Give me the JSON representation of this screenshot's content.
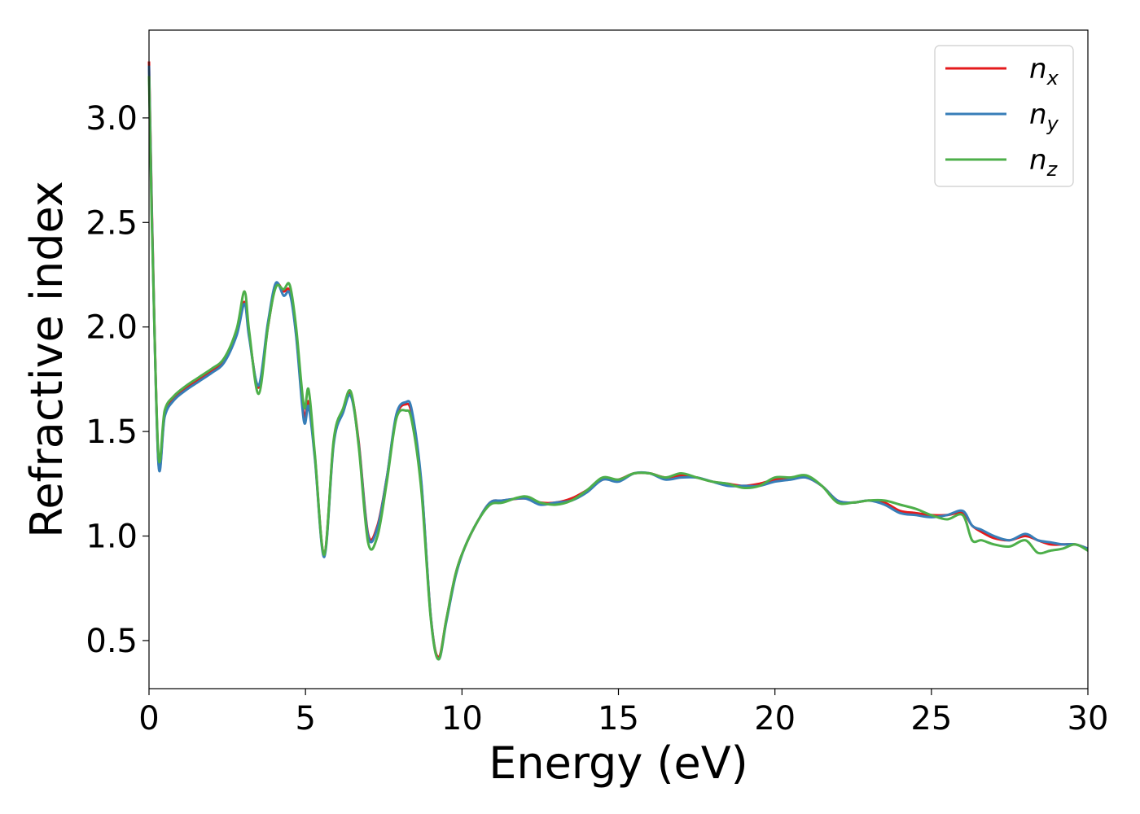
{
  "chart_data": {
    "type": "line",
    "xlabel": "Energy (eV)",
    "ylabel": "Refractive index",
    "xlim": [
      0,
      30
    ],
    "ylim": [
      0.27,
      3.42
    ],
    "x_ticks": [
      0,
      5,
      10,
      15,
      20,
      25,
      30
    ],
    "x_tick_labels": [
      "0",
      "5",
      "10",
      "15",
      "20",
      "25",
      "30"
    ],
    "y_ticks": [
      0.5,
      1.0,
      1.5,
      2.0,
      2.5,
      3.0
    ],
    "y_tick_labels": [
      "0.5",
      "1.0",
      "1.5",
      "2.0",
      "2.5",
      "3.0"
    ],
    "grid": false,
    "legend_position": "top-right",
    "series": [
      {
        "name": "n",
        "subscript": "x",
        "color": "#e41a1c",
        "x": [
          0.0,
          0.1,
          0.3,
          0.5,
          0.8,
          1.2,
          1.6,
          2.0,
          2.4,
          2.8,
          3.05,
          3.2,
          3.5,
          3.8,
          4.05,
          4.3,
          4.5,
          4.7,
          4.95,
          5.1,
          5.3,
          5.6,
          5.9,
          6.2,
          6.45,
          6.7,
          7.0,
          7.3,
          7.6,
          7.9,
          8.2,
          8.4,
          8.7,
          9.0,
          9.25,
          9.5,
          9.8,
          10.1,
          10.5,
          10.9,
          11.3,
          12.0,
          12.5,
          13.0,
          13.5,
          14.0,
          14.5,
          15.0,
          15.5,
          16.0,
          16.5,
          17.0,
          17.5,
          18.0,
          18.5,
          19.0,
          19.5,
          20.0,
          20.5,
          21.0,
          21.5,
          22.0,
          22.5,
          23.0,
          23.5,
          24.0,
          24.5,
          25.0,
          25.5,
          26.0,
          26.3,
          26.6,
          27.0,
          27.5,
          28.0,
          28.4,
          28.8,
          29.2,
          29.6,
          30.0
        ],
        "y": [
          3.27,
          2.5,
          1.36,
          1.58,
          1.66,
          1.71,
          1.75,
          1.79,
          1.84,
          1.97,
          2.12,
          1.96,
          1.71,
          2.0,
          2.2,
          2.17,
          2.17,
          1.97,
          1.58,
          1.64,
          1.38,
          0.91,
          1.45,
          1.6,
          1.68,
          1.45,
          1.01,
          1.05,
          1.28,
          1.57,
          1.63,
          1.58,
          1.25,
          0.62,
          0.42,
          0.6,
          0.82,
          0.95,
          1.07,
          1.16,
          1.17,
          1.18,
          1.16,
          1.16,
          1.18,
          1.22,
          1.27,
          1.27,
          1.3,
          1.3,
          1.28,
          1.29,
          1.28,
          1.26,
          1.25,
          1.24,
          1.25,
          1.27,
          1.28,
          1.28,
          1.24,
          1.17,
          1.16,
          1.17,
          1.16,
          1.12,
          1.11,
          1.1,
          1.1,
          1.11,
          1.05,
          1.02,
          0.99,
          0.98,
          1.0,
          0.98,
          0.96,
          0.96,
          0.96,
          0.94
        ]
      },
      {
        "name": "n",
        "subscript": "y",
        "color": "#377eb8",
        "x": [
          0.0,
          0.1,
          0.3,
          0.5,
          0.8,
          1.2,
          1.6,
          2.0,
          2.4,
          2.8,
          3.05,
          3.2,
          3.5,
          3.8,
          4.05,
          4.3,
          4.5,
          4.7,
          4.95,
          5.1,
          5.3,
          5.6,
          5.9,
          6.2,
          6.45,
          6.7,
          7.0,
          7.3,
          7.6,
          7.9,
          8.2,
          8.4,
          8.7,
          9.0,
          9.25,
          9.5,
          9.8,
          10.1,
          10.5,
          10.9,
          11.3,
          12.0,
          12.5,
          13.0,
          13.5,
          14.0,
          14.5,
          15.0,
          15.5,
          16.0,
          16.5,
          17.0,
          17.5,
          18.0,
          18.5,
          19.0,
          19.5,
          20.0,
          20.5,
          21.0,
          21.5,
          22.0,
          22.5,
          23.0,
          23.5,
          24.0,
          24.5,
          25.0,
          25.5,
          26.0,
          26.3,
          26.6,
          27.0,
          27.5,
          28.0,
          28.4,
          28.8,
          29.2,
          29.6,
          30.0
        ],
        "y": [
          3.25,
          2.48,
          1.35,
          1.57,
          1.65,
          1.7,
          1.74,
          1.78,
          1.83,
          1.96,
          2.11,
          1.95,
          1.72,
          2.02,
          2.21,
          2.15,
          2.16,
          1.96,
          1.55,
          1.62,
          1.37,
          0.9,
          1.44,
          1.59,
          1.67,
          1.44,
          1.0,
          1.04,
          1.28,
          1.58,
          1.64,
          1.6,
          1.26,
          0.62,
          0.41,
          0.59,
          0.81,
          0.95,
          1.07,
          1.16,
          1.17,
          1.18,
          1.15,
          1.16,
          1.17,
          1.21,
          1.27,
          1.26,
          1.3,
          1.3,
          1.27,
          1.28,
          1.28,
          1.26,
          1.24,
          1.24,
          1.24,
          1.26,
          1.27,
          1.28,
          1.24,
          1.17,
          1.16,
          1.17,
          1.15,
          1.11,
          1.1,
          1.09,
          1.1,
          1.12,
          1.05,
          1.03,
          1.0,
          0.98,
          1.01,
          0.98,
          0.97,
          0.96,
          0.96,
          0.94
        ]
      },
      {
        "name": "n",
        "subscript": "z",
        "color": "#4daf4a",
        "x": [
          0.0,
          0.1,
          0.3,
          0.5,
          0.8,
          1.2,
          1.6,
          2.0,
          2.4,
          2.8,
          3.05,
          3.2,
          3.5,
          3.8,
          4.05,
          4.3,
          4.5,
          4.7,
          4.95,
          5.1,
          5.3,
          5.6,
          5.9,
          6.2,
          6.45,
          6.7,
          7.0,
          7.3,
          7.6,
          7.9,
          8.2,
          8.4,
          8.7,
          9.0,
          9.25,
          9.5,
          9.8,
          10.1,
          10.5,
          10.9,
          11.3,
          12.0,
          12.5,
          13.0,
          13.5,
          14.0,
          14.5,
          15.0,
          15.5,
          16.0,
          16.5,
          17.0,
          17.5,
          18.0,
          18.5,
          19.0,
          19.5,
          20.0,
          20.5,
          21.0,
          21.5,
          22.0,
          22.5,
          23.0,
          23.5,
          24.0,
          24.5,
          25.0,
          25.5,
          26.0,
          26.3,
          26.6,
          27.0,
          27.5,
          28.0,
          28.4,
          28.8,
          29.2,
          29.6,
          30.0
        ],
        "y": [
          3.2,
          2.45,
          1.39,
          1.6,
          1.67,
          1.72,
          1.76,
          1.8,
          1.85,
          1.99,
          2.17,
          1.98,
          1.68,
          2.0,
          2.19,
          2.18,
          2.2,
          2.0,
          1.62,
          1.7,
          1.39,
          0.91,
          1.46,
          1.61,
          1.69,
          1.43,
          0.97,
          1.0,
          1.26,
          1.56,
          1.6,
          1.55,
          1.22,
          0.61,
          0.41,
          0.6,
          0.82,
          0.95,
          1.07,
          1.15,
          1.16,
          1.19,
          1.16,
          1.15,
          1.17,
          1.22,
          1.28,
          1.27,
          1.3,
          1.3,
          1.28,
          1.3,
          1.28,
          1.26,
          1.25,
          1.23,
          1.24,
          1.28,
          1.28,
          1.29,
          1.24,
          1.16,
          1.16,
          1.17,
          1.17,
          1.15,
          1.13,
          1.1,
          1.08,
          1.1,
          0.98,
          0.98,
          0.96,
          0.95,
          0.98,
          0.92,
          0.93,
          0.94,
          0.96,
          0.93
        ]
      }
    ]
  }
}
